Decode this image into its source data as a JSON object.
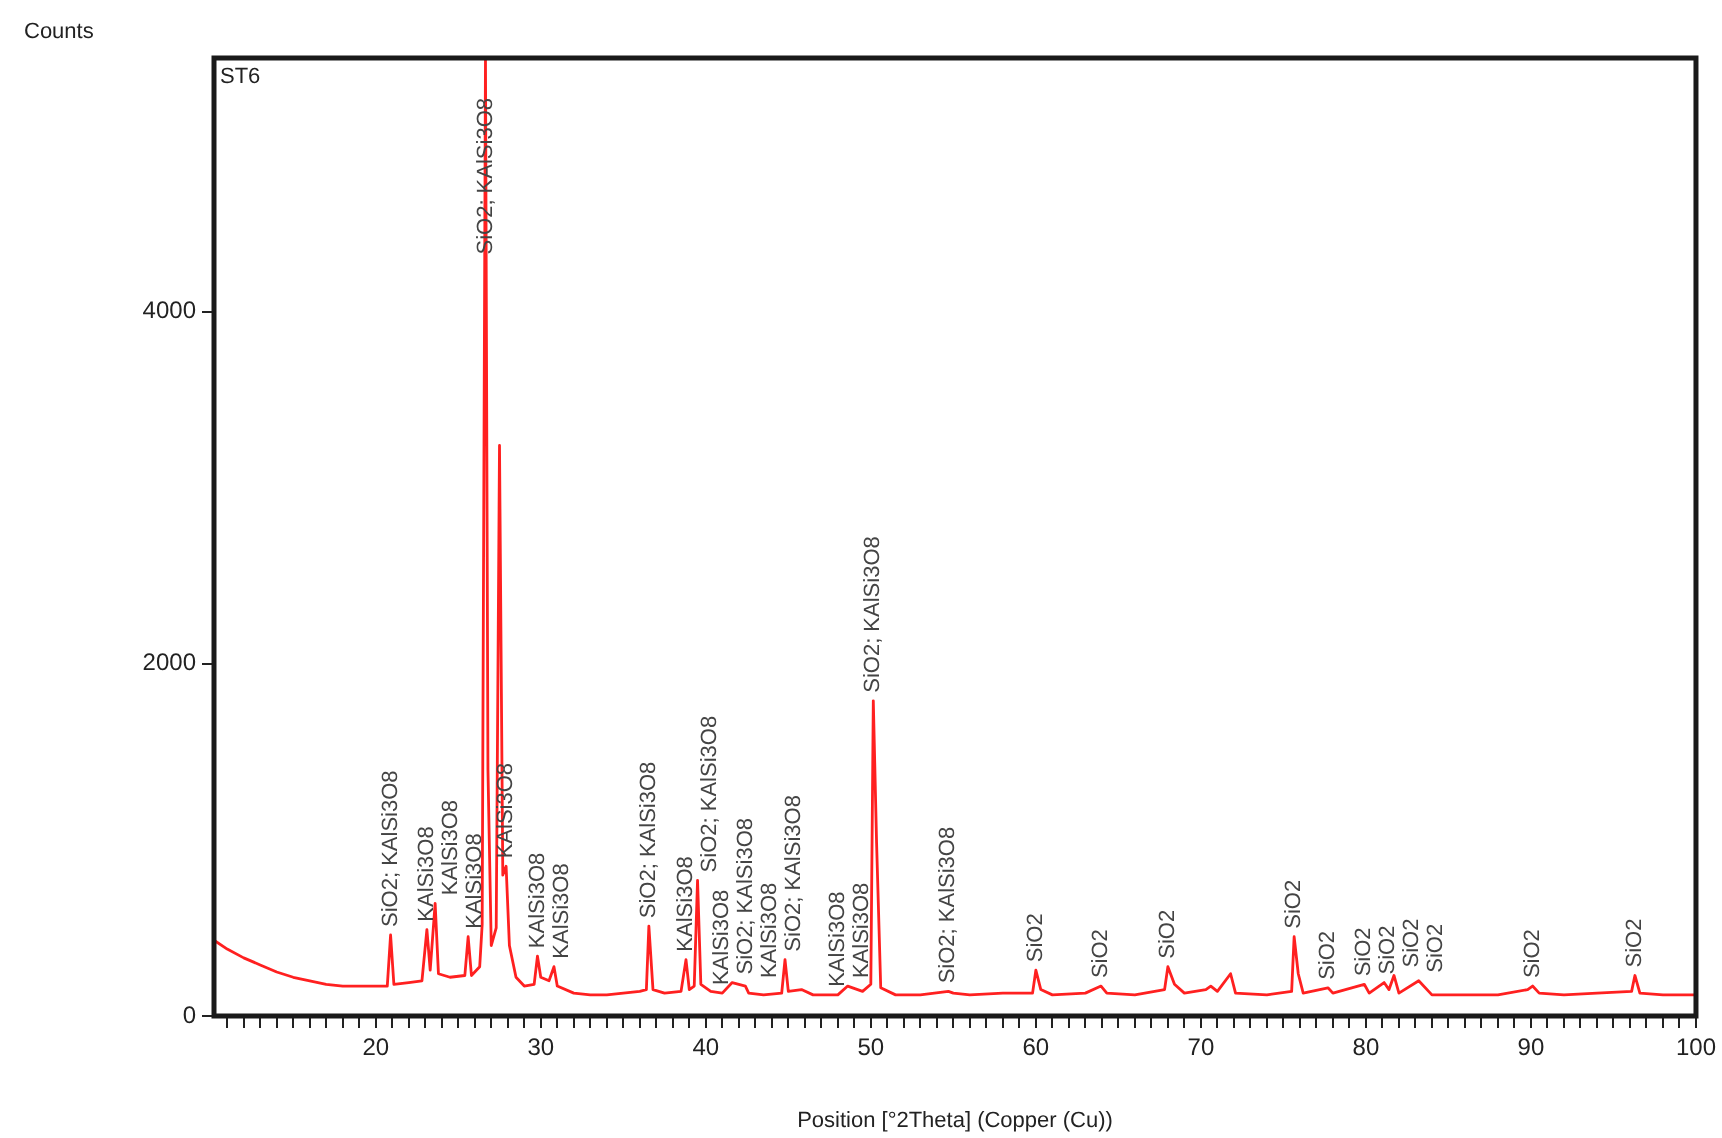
{
  "chart_data": {
    "type": "line",
    "title": "ST6",
    "xlabel": "Position [°2Theta] (Copper (Cu))",
    "ylabel": "Counts",
    "x": [
      10.2,
      11,
      12,
      13,
      14,
      15,
      16,
      17,
      18,
      19,
      20,
      20.7,
      20.9,
      21.1,
      22,
      22.8,
      23.1,
      23.3,
      23.6,
      23.8,
      24.5,
      25.4,
      25.6,
      25.8,
      26.3,
      26.45,
      26.65,
      26.8,
      27.0,
      27.3,
      27.5,
      27.7,
      27.9,
      28.1,
      28.5,
      29.0,
      29.6,
      29.8,
      30.0,
      30.5,
      30.8,
      31.0,
      32,
      33,
      34,
      35,
      36,
      36.4,
      36.55,
      36.8,
      37.5,
      38.5,
      38.8,
      39.0,
      39.3,
      39.5,
      39.7,
      40.3,
      41,
      41.6,
      42.4,
      42.6,
      43.5,
      44.6,
      44.8,
      45.0,
      45.8,
      46.5,
      48,
      48.6,
      49.5,
      50.0,
      50.15,
      50.35,
      50.6,
      51.5,
      53,
      54.7,
      55,
      56,
      58,
      59.8,
      60.0,
      60.3,
      61,
      63,
      63.95,
      64.3,
      66,
      67.8,
      68.0,
      68.4,
      69,
      70.3,
      70.6,
      71,
      71.8,
      72.1,
      74,
      75.5,
      75.65,
      75.9,
      76.2,
      77.7,
      78,
      79.9,
      80.2,
      81.1,
      81.4,
      81.7,
      82,
      83.2,
      84,
      86,
      88,
      89.8,
      90.1,
      90.5,
      92,
      94,
      96.1,
      96.3,
      96.6,
      98,
      99.9
    ],
    "series": [
      {
        "color": "#ff2020",
        "values": [
          430,
          380,
          330,
          290,
          250,
          220,
          200,
          180,
          170,
          170,
          170,
          170,
          460,
          180,
          190,
          200,
          490,
          260,
          640,
          240,
          220,
          230,
          450,
          230,
          280,
          520,
          5440,
          1400,
          400,
          500,
          3240,
          800,
          850,
          400,
          220,
          170,
          180,
          340,
          220,
          200,
          280,
          170,
          130,
          120,
          120,
          130,
          140,
          150,
          510,
          150,
          130,
          140,
          320,
          150,
          170,
          770,
          180,
          140,
          130,
          190,
          170,
          130,
          120,
          130,
          320,
          140,
          150,
          120,
          120,
          170,
          140,
          180,
          1790,
          980,
          160,
          120,
          120,
          140,
          130,
          120,
          130,
          130,
          260,
          150,
          120,
          130,
          170,
          130,
          120,
          150,
          280,
          180,
          130,
          150,
          170,
          140,
          240,
          130,
          120,
          140,
          450,
          240,
          130,
          160,
          130,
          180,
          130,
          190,
          150,
          230,
          130,
          200,
          120,
          120,
          120,
          150,
          170,
          130,
          120,
          130,
          140,
          230,
          130,
          120,
          120
        ]
      }
    ],
    "xlim": [
      10.2,
      100
    ],
    "ylim": [
      0,
      5440
    ],
    "xticks": [
      {
        "value": 11,
        "label": null
      },
      {
        "value": 12,
        "label": null
      },
      {
        "value": 13,
        "label": null
      },
      {
        "value": 14,
        "label": null
      },
      {
        "value": 15,
        "label": null
      },
      {
        "value": 16,
        "label": null
      },
      {
        "value": 17,
        "label": null
      },
      {
        "value": 18,
        "label": null
      },
      {
        "value": 19,
        "label": null
      },
      20,
      {
        "value": 21,
        "label": null
      },
      {
        "value": 22,
        "label": null
      },
      {
        "value": 23,
        "label": null
      },
      {
        "value": 24,
        "label": null
      },
      {
        "value": 25,
        "label": null
      },
      {
        "value": 26,
        "label": null
      },
      {
        "value": 27,
        "label": null
      },
      {
        "value": 28,
        "label": null
      },
      {
        "value": 29,
        "label": null
      },
      30,
      {
        "value": 31,
        "label": null
      },
      {
        "value": 32,
        "label": null
      },
      {
        "value": 33,
        "label": null
      },
      {
        "value": 34,
        "label": null
      },
      {
        "value": 35,
        "label": null
      },
      {
        "value": 36,
        "label": null
      },
      {
        "value": 37,
        "label": null
      },
      {
        "value": 38,
        "label": null
      },
      {
        "value": 39,
        "label": null
      },
      40,
      {
        "value": 41,
        "label": null
      },
      {
        "value": 42,
        "label": null
      },
      {
        "value": 43,
        "label": null
      },
      {
        "value": 44,
        "label": null
      },
      {
        "value": 45,
        "label": null
      },
      {
        "value": 46,
        "label": null
      },
      {
        "value": 47,
        "label": null
      },
      {
        "value": 48,
        "label": null
      },
      {
        "value": 49,
        "label": null
      },
      50,
      {
        "value": 51,
        "label": null
      },
      {
        "value": 52,
        "label": null
      },
      {
        "value": 53,
        "label": null
      },
      {
        "value": 54,
        "label": null
      },
      {
        "value": 55,
        "label": null
      },
      {
        "value": 56,
        "label": null
      },
      {
        "value": 57,
        "label": null
      },
      {
        "value": 58,
        "label": null
      },
      {
        "value": 59,
        "label": null
      },
      60,
      {
        "value": 61,
        "label": null
      },
      {
        "value": 62,
        "label": null
      },
      {
        "value": 63,
        "label": null
      },
      {
        "value": 64,
        "label": null
      },
      {
        "value": 65,
        "label": null
      },
      {
        "value": 66,
        "label": null
      },
      {
        "value": 67,
        "label": null
      },
      {
        "value": 68,
        "label": null
      },
      {
        "value": 69,
        "label": null
      },
      70,
      {
        "value": 71,
        "label": null
      },
      {
        "value": 72,
        "label": null
      },
      {
        "value": 73,
        "label": null
      },
      {
        "value": 74,
        "label": null
      },
      {
        "value": 75,
        "label": null
      },
      {
        "value": 76,
        "label": null
      },
      {
        "value": 77,
        "label": null
      },
      {
        "value": 78,
        "label": null
      },
      {
        "value": 79,
        "label": null
      },
      80,
      {
        "value": 81,
        "label": null
      },
      {
        "value": 82,
        "label": null
      },
      {
        "value": 83,
        "label": null
      },
      {
        "value": 84,
        "label": null
      },
      {
        "value": 85,
        "label": null
      },
      {
        "value": 86,
        "label": null
      },
      {
        "value": 87,
        "label": null
      },
      {
        "value": 88,
        "label": null
      },
      {
        "value": 89,
        "label": null
      },
      90,
      {
        "value": 91,
        "label": null
      },
      {
        "value": 92,
        "label": null
      },
      {
        "value": 93,
        "label": null
      },
      {
        "value": 94,
        "label": null
      },
      {
        "value": 95,
        "label": null
      },
      {
        "value": 96,
        "label": null
      },
      {
        "value": 97,
        "label": null
      },
      {
        "value": 98,
        "label": null
      },
      {
        "value": 99,
        "label": null
      },
      100
    ],
    "yticks": [
      0,
      2000,
      4000
    ],
    "marker": "none",
    "legend": false,
    "annotations": [
      {
        "text": "SiO2; KAlSi3O8",
        "x": 20.9,
        "y": 460
      },
      {
        "text": "KAlSi3O8",
        "x": 23.1,
        "y": 490
      },
      {
        "text": "KAlSi3O8",
        "x": 23.6,
        "y": 640
      },
      {
        "text": "KAlSi3O8",
        "x": 25.6,
        "y": 450
      },
      {
        "text": "SiO2; KAlSi3O8",
        "x": 26.65,
        "y": 5440
      },
      {
        "text": "KAlSi3O8",
        "x": 27.9,
        "y": 850
      },
      {
        "text": "KAlSi3O8",
        "x": 29.8,
        "y": 340
      },
      {
        "text": "KAlSi3O8",
        "x": 30.8,
        "y": 280
      },
      {
        "text": "SiO2; KAlSi3O8",
        "x": 36.55,
        "y": 510
      },
      {
        "text": "KAlSi3O8",
        "x": 38.8,
        "y": 320
      },
      {
        "text": "SiO2; KAlSi3O8",
        "x": 39.5,
        "y": 770
      },
      {
        "text": "KAlSi3O8",
        "x": 41,
        "y": 130
      },
      {
        "text": "SiO2; KAlSi3O8",
        "x": 41.6,
        "y": 190
      },
      {
        "text": "KAlSi3O8",
        "x": 42.4,
        "y": 170
      },
      {
        "text": "SiO2; KAlSi3O8",
        "x": 44.8,
        "y": 320
      },
      {
        "text": "KAlSi3O8",
        "x": 48,
        "y": 120
      },
      {
        "text": "KAlSi3O8",
        "x": 48.6,
        "y": 170
      },
      {
        "text": "SiO2; KAlSi3O8",
        "x": 50.15,
        "y": 1790
      },
      {
        "text": "SiO2; KAlSi3O8",
        "x": 54.7,
        "y": 140
      },
      {
        "text": "SiO2",
        "x": 60.0,
        "y": 260
      },
      {
        "text": "SiO2",
        "x": 63.95,
        "y": 170
      },
      {
        "text": "SiO2",
        "x": 68.0,
        "y": 280
      },
      {
        "text": "SiO2",
        "x": 75.65,
        "y": 450
      },
      {
        "text": "SiO2",
        "x": 77.7,
        "y": 160
      },
      {
        "text": "SiO2",
        "x": 79.9,
        "y": 180
      },
      {
        "text": "SiO2",
        "x": 81.1,
        "y": 190
      },
      {
        "text": "SiO2",
        "x": 81.7,
        "y": 230
      },
      {
        "text": "SiO2",
        "x": 83.2,
        "y": 200
      },
      {
        "text": "SiO2",
        "x": 90.1,
        "y": 170
      },
      {
        "text": "SiO2",
        "x": 96.3,
        "y": 230
      }
    ]
  }
}
